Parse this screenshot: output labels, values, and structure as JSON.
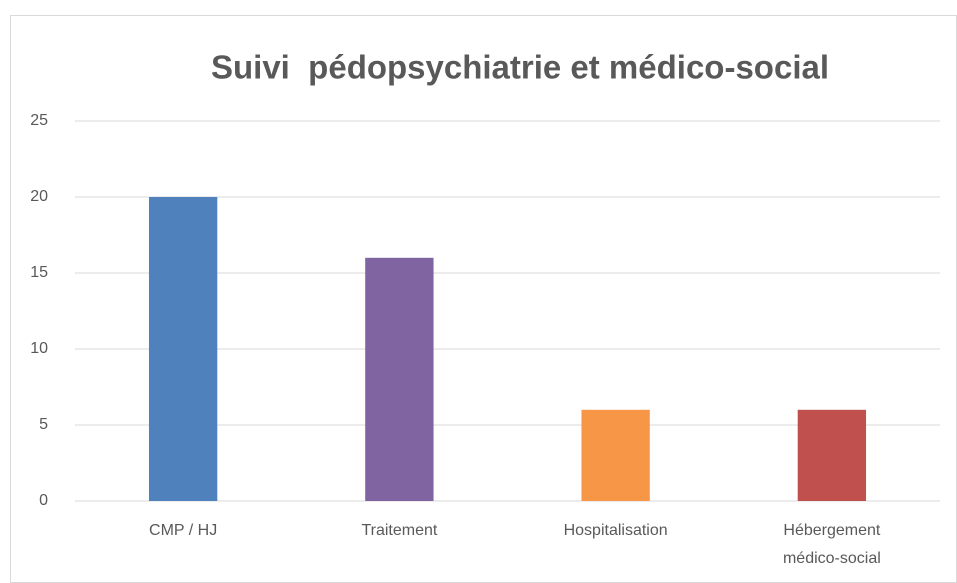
{
  "chart_data": {
    "type": "bar",
    "title": "Suivi  pédopsychiatrie et médico-social",
    "categories": [
      "CMP / HJ",
      "Traitement",
      "Hospitalisation",
      "Hébergement médico-social"
    ],
    "values": [
      20,
      16,
      6,
      6
    ],
    "colors": [
      "#4f81bd",
      "#8064a2",
      "#f79646",
      "#c0504d"
    ],
    "ylim": [
      0,
      25
    ],
    "yticks": [
      0,
      5,
      10,
      15,
      20,
      25
    ],
    "grid": true
  }
}
